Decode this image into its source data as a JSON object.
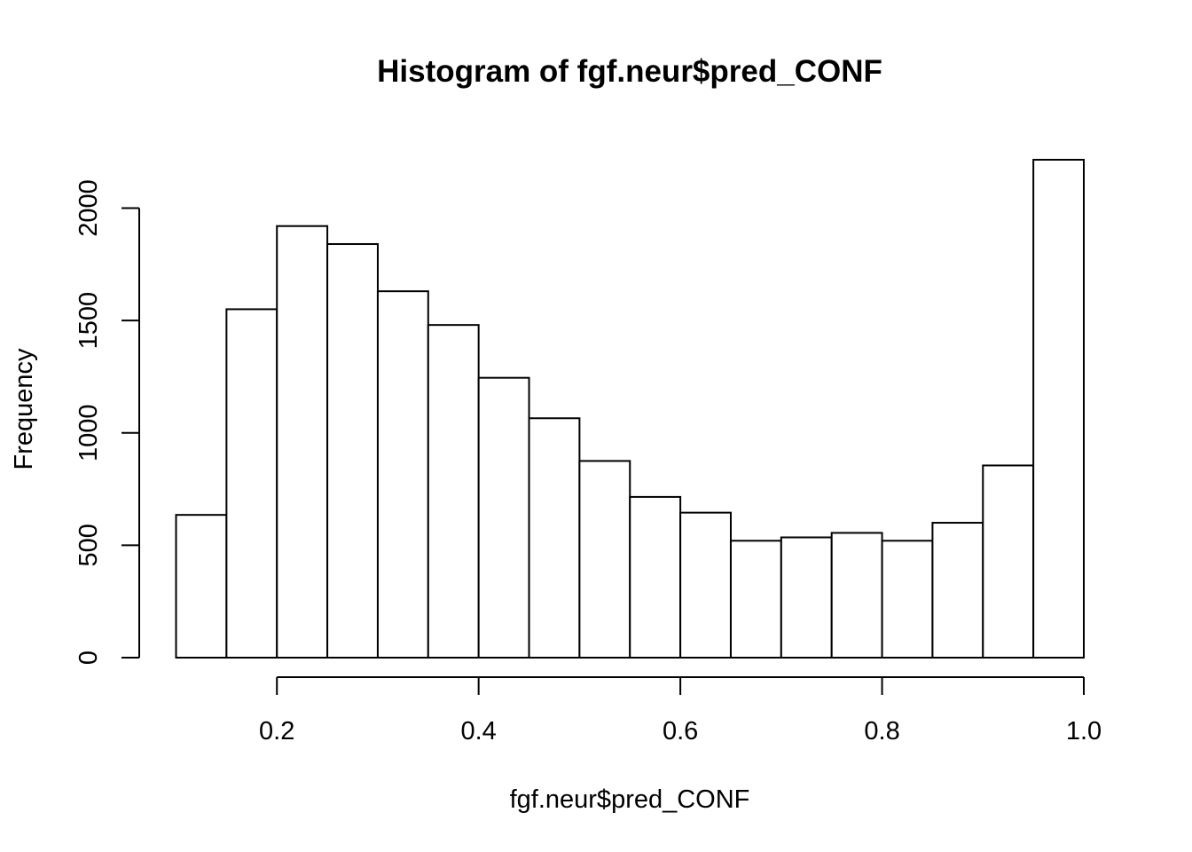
{
  "chart_data": {
    "type": "bar",
    "title": "Histogram of fgf.neur$pred_CONF",
    "xlabel": "fgf.neur$pred_CONF",
    "ylabel": "Frequency",
    "bin_edges": [
      0.1,
      0.15,
      0.2,
      0.25,
      0.3,
      0.35,
      0.4,
      0.45,
      0.5,
      0.55,
      0.6,
      0.65,
      0.7,
      0.75,
      0.8,
      0.85,
      0.9,
      0.95,
      1.0
    ],
    "values": [
      635,
      1550,
      1920,
      1840,
      1630,
      1480,
      1245,
      1065,
      875,
      715,
      645,
      520,
      535,
      555,
      520,
      600,
      855,
      2215
    ],
    "xlim": [
      0.1,
      1.0
    ],
    "ylim": [
      0,
      2215
    ],
    "x_ticks": [
      0.2,
      0.4,
      0.6,
      0.8,
      1.0
    ],
    "x_tick_labels": [
      "0.2",
      "0.4",
      "0.6",
      "0.8",
      "1.0"
    ],
    "y_ticks": [
      0,
      500,
      1000,
      1500,
      2000
    ],
    "y_tick_labels": [
      "0",
      "500",
      "1000",
      "1500",
      "2000"
    ],
    "bar_fill": "#ffffff",
    "bar_stroke": "#000000",
    "grid": false,
    "legend": "none"
  }
}
